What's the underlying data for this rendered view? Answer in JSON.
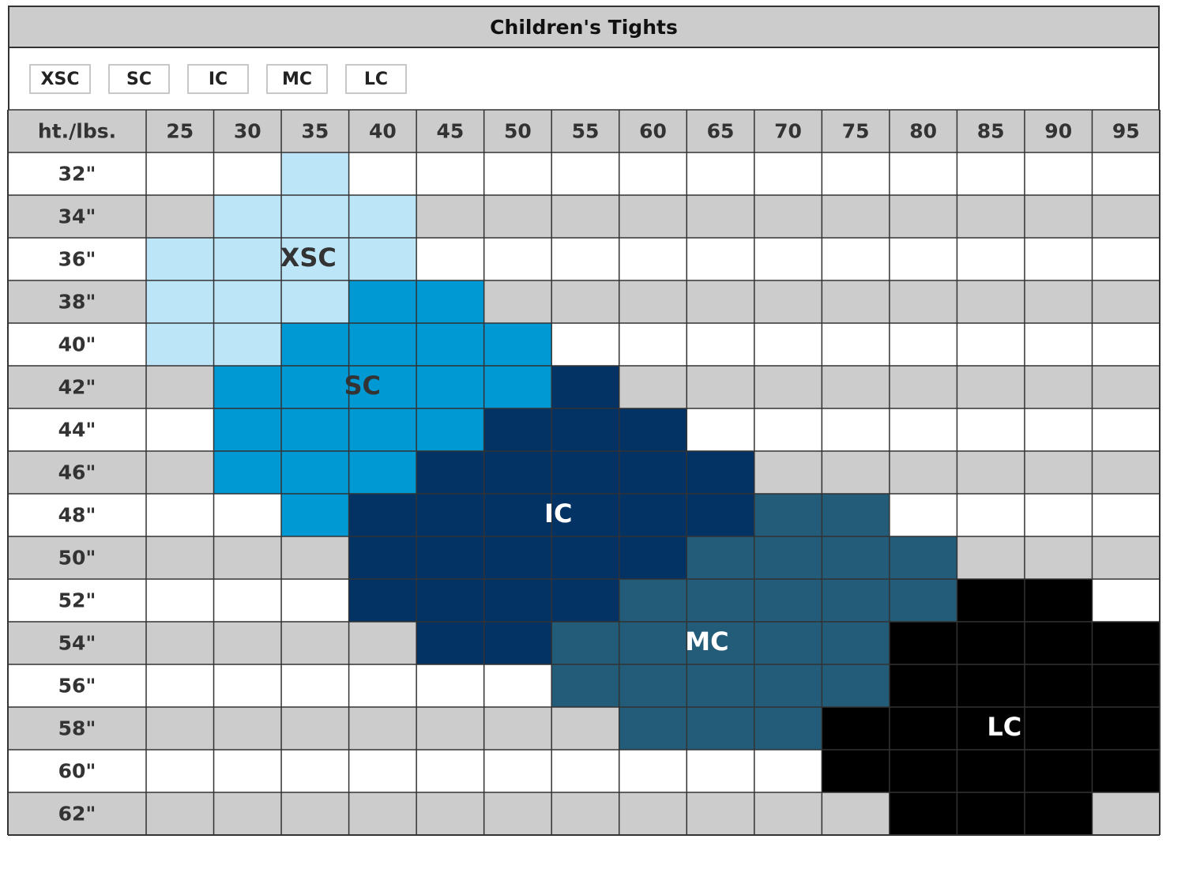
{
  "chart_data": {
    "type": "heatmap",
    "title": "Children's Tights",
    "corner_label": "ht./lbs.",
    "columns": [
      "25",
      "30",
      "35",
      "40",
      "45",
      "50",
      "55",
      "60",
      "65",
      "70",
      "75",
      "80",
      "85",
      "90",
      "95"
    ],
    "rows": [
      "32\"",
      "34\"",
      "36\"",
      "38\"",
      "40\"",
      "42\"",
      "44\"",
      "46\"",
      "48\"",
      "50\"",
      "52\"",
      "54\"",
      "56\"",
      "58\"",
      "60\"",
      "62\""
    ],
    "sizes": [
      "XSC",
      "SC",
      "IC",
      "MC",
      "LC"
    ],
    "size_colors": {
      "XSC": "#bde5f8",
      "SC": "#0099d4",
      "IC": "#033264",
      "MC": "#235c78",
      "LC": "#000000"
    },
    "stripe_colors": {
      "even": "#ffffff",
      "odd": "#cccccc"
    },
    "grid": [
      [
        null,
        null,
        "XSC",
        null,
        null,
        null,
        null,
        null,
        null,
        null,
        null,
        null,
        null,
        null,
        null
      ],
      [
        null,
        "XSC",
        "XSC",
        "XSC",
        null,
        null,
        null,
        null,
        null,
        null,
        null,
        null,
        null,
        null,
        null
      ],
      [
        "XSC",
        "XSC",
        "XSC",
        "XSC",
        null,
        null,
        null,
        null,
        null,
        null,
        null,
        null,
        null,
        null,
        null
      ],
      [
        "XSC",
        "XSC",
        "XSC",
        "SC",
        "SC",
        null,
        null,
        null,
        null,
        null,
        null,
        null,
        null,
        null,
        null
      ],
      [
        "XSC",
        "XSC",
        "SC",
        "SC",
        "SC",
        "SC",
        null,
        null,
        null,
        null,
        null,
        null,
        null,
        null,
        null
      ],
      [
        null,
        "SC",
        "SC",
        "SC",
        "SC",
        "SC",
        "IC",
        null,
        null,
        null,
        null,
        null,
        null,
        null,
        null
      ],
      [
        null,
        "SC",
        "SC",
        "SC",
        "SC",
        "IC",
        "IC",
        "IC",
        null,
        null,
        null,
        null,
        null,
        null,
        null
      ],
      [
        null,
        "SC",
        "SC",
        "SC",
        "IC",
        "IC",
        "IC",
        "IC",
        "IC",
        null,
        null,
        null,
        null,
        null,
        null
      ],
      [
        null,
        null,
        "SC",
        "IC",
        "IC",
        "IC",
        "IC",
        "IC",
        "IC",
        "MC",
        "MC",
        null,
        null,
        null,
        null
      ],
      [
        null,
        null,
        null,
        "IC",
        "IC",
        "IC",
        "IC",
        "IC",
        "MC",
        "MC",
        "MC",
        "MC",
        null,
        null,
        null
      ],
      [
        null,
        null,
        null,
        "IC",
        "IC",
        "IC",
        "IC",
        "MC",
        "MC",
        "MC",
        "MC",
        "MC",
        "LC",
        "LC",
        null
      ],
      [
        null,
        null,
        null,
        null,
        "IC",
        "IC",
        "MC",
        "MC",
        "MC",
        "MC",
        "MC",
        "LC",
        "LC",
        "LC",
        "LC"
      ],
      [
        null,
        null,
        null,
        null,
        null,
        null,
        "MC",
        "MC",
        "MC",
        "MC",
        "MC",
        "LC",
        "LC",
        "LC",
        "LC"
      ],
      [
        null,
        null,
        null,
        null,
        null,
        null,
        null,
        "MC",
        "MC",
        "MC",
        "LC",
        "LC",
        "LC",
        "LC",
        "LC"
      ],
      [
        null,
        null,
        null,
        null,
        null,
        null,
        null,
        null,
        null,
        null,
        "LC",
        "LC",
        "LC",
        "LC",
        "LC"
      ],
      [
        null,
        null,
        null,
        null,
        null,
        null,
        null,
        null,
        null,
        null,
        null,
        "LC",
        "LC",
        "LC",
        null
      ]
    ],
    "region_labels": [
      {
        "text": "XSC",
        "color": "#333333"
      },
      {
        "text": "SC",
        "color": "#333333"
      },
      {
        "text": "IC",
        "color": "#ffffff"
      },
      {
        "text": "MC",
        "color": "#ffffff"
      },
      {
        "text": "LC",
        "color": "#ffffff"
      }
    ]
  }
}
